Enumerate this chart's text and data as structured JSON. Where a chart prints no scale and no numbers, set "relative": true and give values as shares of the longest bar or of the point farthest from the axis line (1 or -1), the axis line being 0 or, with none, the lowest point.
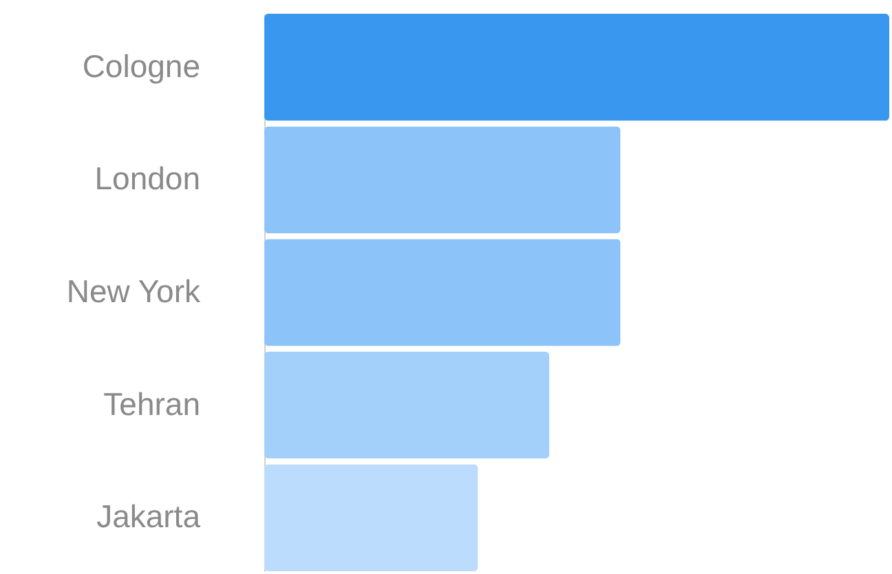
{
  "chart_data": {
    "type": "bar",
    "orientation": "horizontal",
    "relative": true,
    "categories": [
      "Cologne",
      "London",
      "New York",
      "Tehran",
      "Jakarta"
    ],
    "values": [
      1,
      0.57,
      0.57,
      0.456,
      0.342
    ],
    "colors": [
      "#3a97f0",
      "#8cc4fa",
      "#8cc4fa",
      "#a3cffb",
      "#bcdcfd"
    ]
  }
}
